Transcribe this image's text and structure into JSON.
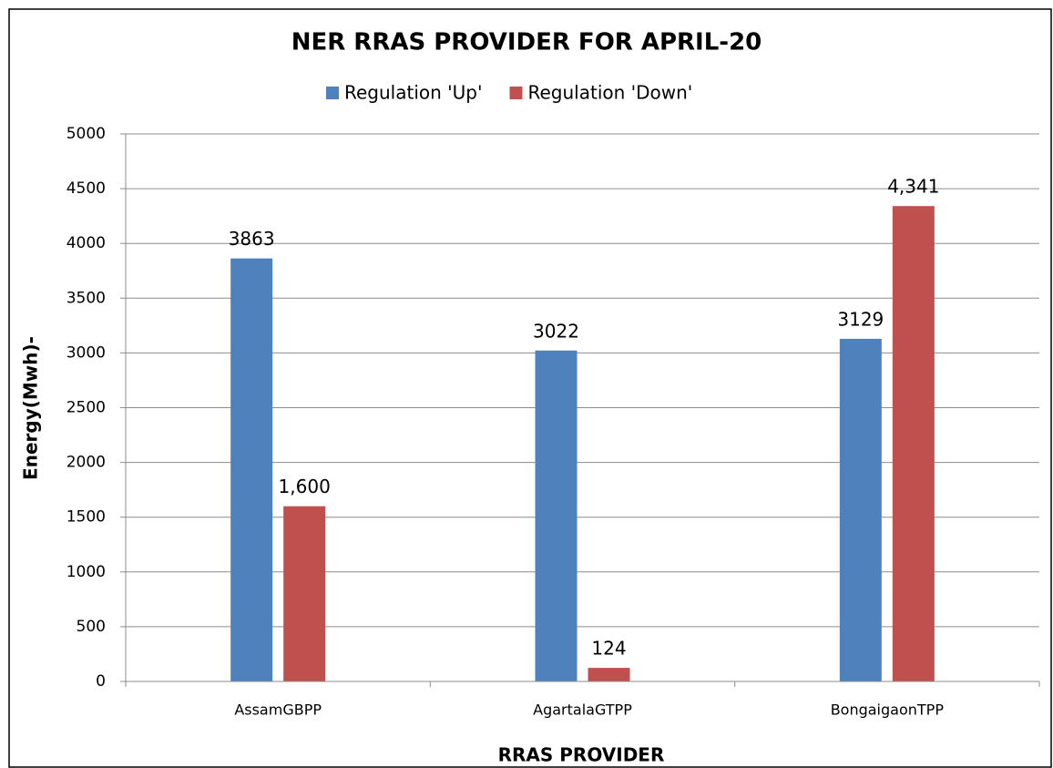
{
  "chart_data": {
    "type": "bar",
    "title": "NER RRAS PROVIDER FOR APRIL-20",
    "x_label": "RRAS PROVIDER",
    "y_label": "Energy(Mwh)-",
    "categories": [
      "AssamGBPP",
      "AgartalaGTPP",
      "BongaigaonTPP"
    ],
    "series": [
      {
        "name": "Regulation 'Up'",
        "color": "#4f81bd",
        "values": [
          3863,
          3022,
          3129
        ]
      },
      {
        "name": "Regulation 'Down'",
        "color": "#c0504d",
        "values": [
          1600,
          124,
          4341
        ],
        "value_labels": [
          "1,600",
          "124",
          "4,341"
        ]
      }
    ],
    "ylim": [
      0,
      5000
    ],
    "yticks": [
      0,
      500,
      1000,
      1500,
      2000,
      2500,
      3000,
      3500,
      4000,
      4500,
      5000
    ],
    "grid": true,
    "legend": "top"
  }
}
